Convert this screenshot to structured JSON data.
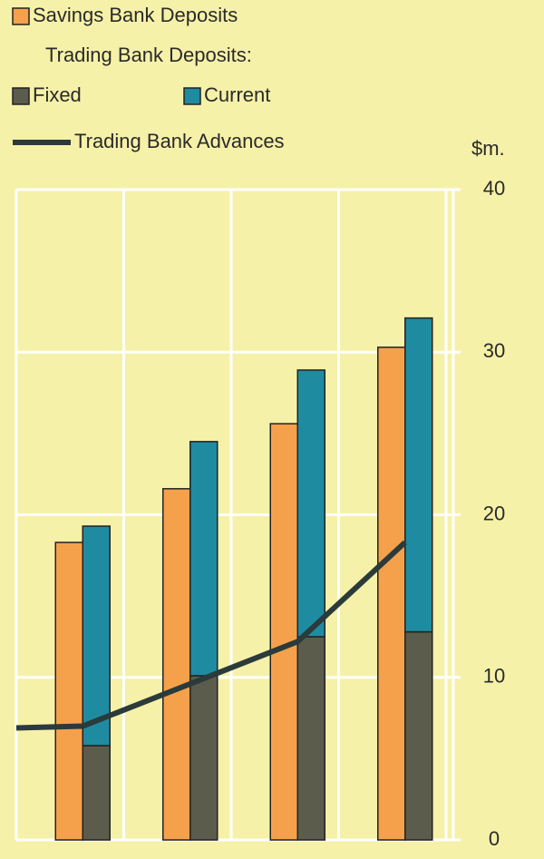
{
  "chart_data": {
    "type": "bar",
    "categories": [
      null,
      null,
      null,
      null
    ],
    "legend_group_title": "Trading Bank Deposits:",
    "y_label": "$m.",
    "series": [
      {
        "name": "Savings Bank Deposits",
        "type": "bar",
        "color": "#f5a14c",
        "values": [
          18.3,
          21.6,
          25.6,
          30.3
        ]
      },
      {
        "name": "Fixed",
        "type": "stacked_bar",
        "color": "#5c5c4c",
        "values": [
          5.8,
          10.1,
          12.5,
          12.8
        ]
      },
      {
        "name": "Current",
        "type": "stacked_bar",
        "color": "#1f8ba0",
        "values": [
          13.5,
          14.4,
          16.4,
          19.3
        ]
      },
      {
        "name": "Trading Bank Advances",
        "type": "line",
        "color": "#2b3a3a",
        "values": [
          7.0,
          9.6,
          12.2,
          18.3
        ]
      }
    ],
    "ylim": [
      0,
      40
    ],
    "yticks": [
      0,
      10,
      20,
      30,
      40
    ],
    "grid": true
  }
}
